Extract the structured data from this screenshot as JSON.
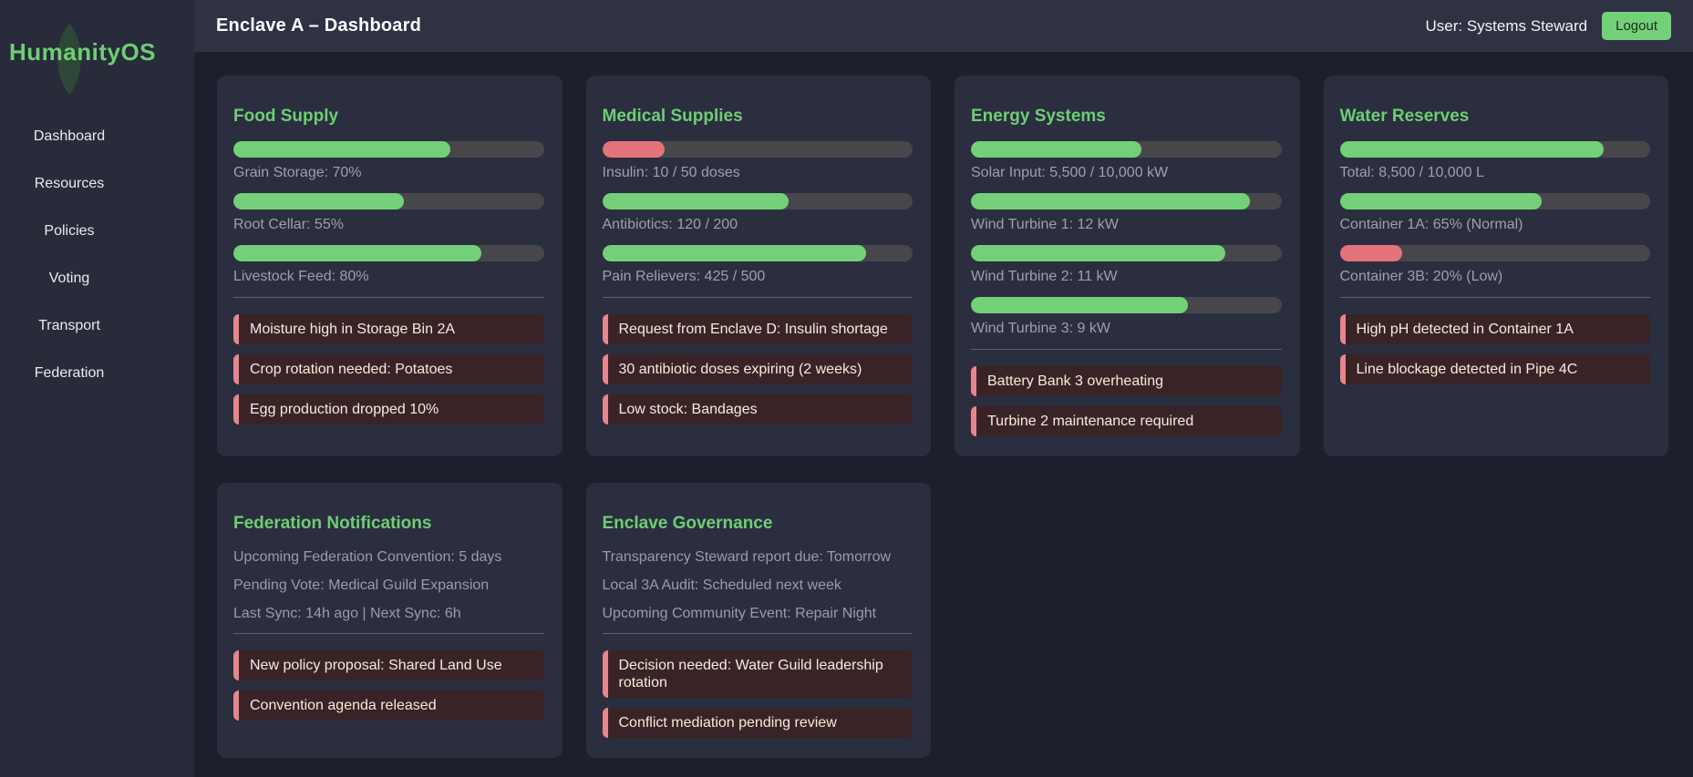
{
  "app": {
    "logo": "HumanityOS"
  },
  "sidebar": {
    "items": [
      {
        "label": "Dashboard"
      },
      {
        "label": "Resources"
      },
      {
        "label": "Policies"
      },
      {
        "label": "Voting"
      },
      {
        "label": "Transport"
      },
      {
        "label": "Federation"
      }
    ]
  },
  "header": {
    "title": "Enclave A – Dashboard",
    "user": "User: Systems Steward",
    "logout_label": "Logout"
  },
  "colors": {
    "green": "#74d078",
    "red": "#e5737c",
    "accent_title": "#6fce74",
    "alert_bg": "#3a2327",
    "alert_border": "#e8868d",
    "track": "#47474b",
    "card_bg": "#2a2e3f",
    "main_bg": "#1d202c",
    "sidebar_bg": "#272b3a",
    "topbar_bg": "#2e3243",
    "leaf": "#2e4737"
  },
  "cards": [
    {
      "title": "Food Supply",
      "bars": [
        {
          "label": "Grain Storage: 70%",
          "percent": 70,
          "color": "green"
        },
        {
          "label": "Root Cellar: 55%",
          "percent": 55,
          "color": "green"
        },
        {
          "label": "Livestock Feed: 80%",
          "percent": 80,
          "color": "green"
        }
      ],
      "info": [],
      "alerts": [
        "Moisture high in Storage Bin 2A",
        "Crop rotation needed: Potatoes",
        "Egg production dropped 10%"
      ]
    },
    {
      "title": "Medical Supplies",
      "bars": [
        {
          "label": "Insulin: 10 / 50 doses",
          "percent": 20,
          "color": "red"
        },
        {
          "label": "Antibiotics: 120 / 200",
          "percent": 60,
          "color": "green"
        },
        {
          "label": "Pain Relievers: 425 / 500",
          "percent": 85,
          "color": "green"
        }
      ],
      "info": [],
      "alerts": [
        "Request from Enclave D: Insulin shortage",
        "30 antibiotic doses expiring (2 weeks)",
        "Low stock: Bandages"
      ]
    },
    {
      "title": "Energy Systems",
      "bars": [
        {
          "label": "Solar Input: 5,500 / 10,000 kW",
          "percent": 55,
          "color": "green"
        },
        {
          "label": "Wind Turbine 1: 12 kW",
          "percent": 90,
          "color": "green"
        },
        {
          "label": "Wind Turbine 2: 11 kW",
          "percent": 82,
          "color": "green"
        },
        {
          "label": "Wind Turbine 3: 9 kW",
          "percent": 70,
          "color": "green"
        }
      ],
      "info": [],
      "alerts": [
        "Battery Bank 3 overheating",
        "Turbine 2 maintenance required"
      ]
    },
    {
      "title": "Water Reserves",
      "bars": [
        {
          "label": "Total: 8,500 / 10,000 L",
          "percent": 85,
          "color": "green"
        },
        {
          "label": "Container 1A: 65% (Normal)",
          "percent": 65,
          "color": "green"
        },
        {
          "label": "Container 3B: 20% (Low)",
          "percent": 20,
          "color": "red"
        }
      ],
      "info": [],
      "alerts": [
        "High pH detected in Container 1A",
        "Line blockage detected in Pipe 4C"
      ]
    },
    {
      "title": "Federation Notifications",
      "bars": [],
      "info": [
        "Upcoming Federation Convention: 5 days",
        "Pending Vote: Medical Guild Expansion",
        "Last Sync: 14h ago | Next Sync: 6h"
      ],
      "alerts": [
        "New policy proposal: Shared Land Use",
        "Convention agenda released"
      ]
    },
    {
      "title": "Enclave Governance",
      "bars": [],
      "info": [
        "Transparency Steward report due: Tomorrow",
        "Local 3A Audit: Scheduled next week",
        "Upcoming Community Event: Repair Night"
      ],
      "alerts": [
        "Decision needed: Water Guild leadership rotation",
        "Conflict mediation pending review"
      ]
    }
  ]
}
